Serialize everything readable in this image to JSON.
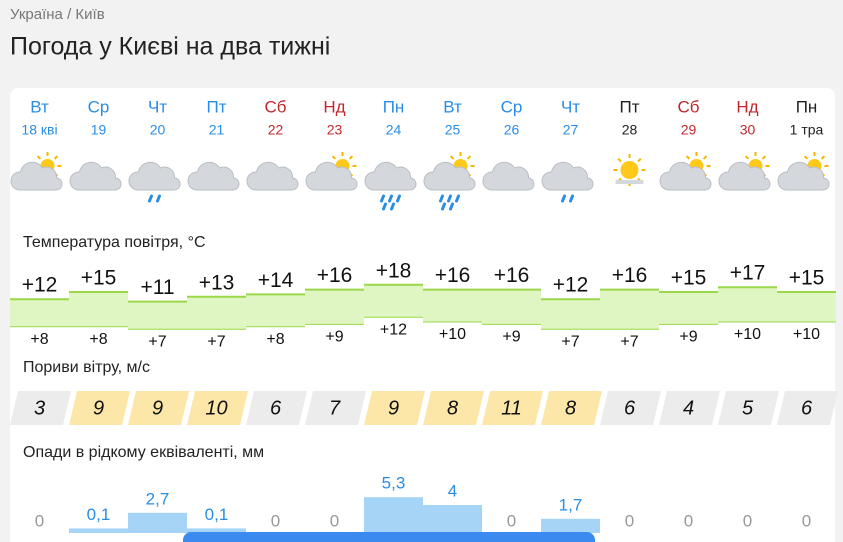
{
  "breadcrumb": [
    "Україна",
    "Київ"
  ],
  "title": "Погода у Києві на два тижні",
  "sections": {
    "temperature": "Температура повітря, °C",
    "wind": "Пориви вітру, м/с",
    "precip": "Опади в рідкому еквіваленті, мм"
  },
  "days": [
    {
      "dow": "Вт",
      "date": "18 кві",
      "color": "#2a8de4",
      "icon": "sun-cloud",
      "tmax": {
        "value": 12,
        "label": "+12"
      },
      "tmin": {
        "value": 8,
        "label": "+8"
      },
      "wind": 3,
      "precip": 0
    },
    {
      "dow": "Ср",
      "date": "19",
      "color": "#2a8de4",
      "icon": "cloud",
      "tmax": {
        "value": 15,
        "label": "+15"
      },
      "tmin": {
        "value": 8,
        "label": "+8"
      },
      "wind": 9,
      "precip": {
        "value": 0.1,
        "label": "0,1"
      }
    },
    {
      "dow": "Чт",
      "date": "20",
      "color": "#2a8de4",
      "icon": "cloud-rain",
      "tmax": {
        "value": 11,
        "label": "+11"
      },
      "tmin": {
        "value": 7,
        "label": "+7"
      },
      "wind": 9,
      "precip": {
        "value": 2.7,
        "label": "2,7"
      }
    },
    {
      "dow": "Пт",
      "date": "21",
      "color": "#2a8de4",
      "icon": "cloud",
      "tmax": {
        "value": 13,
        "label": "+13"
      },
      "tmin": {
        "value": 7,
        "label": "+7"
      },
      "wind": 10,
      "precip": {
        "value": 0.1,
        "label": "0,1"
      }
    },
    {
      "dow": "Сб",
      "date": "22",
      "color": "#c0282d",
      "icon": "cloud",
      "tmax": {
        "value": 14,
        "label": "+14"
      },
      "tmin": {
        "value": 8,
        "label": "+8"
      },
      "wind": 6,
      "precip": 0
    },
    {
      "dow": "Нд",
      "date": "23",
      "color": "#c0282d",
      "icon": "sun-cloud",
      "tmax": {
        "value": 16,
        "label": "+16"
      },
      "tmin": {
        "value": 9,
        "label": "+9"
      },
      "wind": 7,
      "precip": 0
    },
    {
      "dow": "Пн",
      "date": "24",
      "color": "#2a8de4",
      "icon": "cloud-rain",
      "tmax": {
        "value": 18,
        "label": "+18"
      },
      "tmin": {
        "value": 12,
        "label": "+12"
      },
      "wind": 9,
      "precip": {
        "value": 5.3,
        "label": "5,3"
      }
    },
    {
      "dow": "Вт",
      "date": "25",
      "color": "#2a8de4",
      "icon": "sun-cloud-rain",
      "tmax": {
        "value": 16,
        "label": "+16"
      },
      "tmin": {
        "value": 10,
        "label": "+10"
      },
      "wind": 8,
      "precip": 4
    },
    {
      "dow": "Ср",
      "date": "26",
      "color": "#2a8de4",
      "icon": "cloud",
      "tmax": {
        "value": 16,
        "label": "+16"
      },
      "tmin": {
        "value": 9,
        "label": "+9"
      },
      "wind": 11,
      "precip": 0
    },
    {
      "dow": "Чт",
      "date": "27",
      "color": "#2a8de4",
      "icon": "cloud-rain",
      "tmax": {
        "value": 12,
        "label": "+12"
      },
      "tmin": {
        "value": 7,
        "label": "+7"
      },
      "wind": 8,
      "precip": {
        "value": 1.7,
        "label": "1,7"
      }
    },
    {
      "dow": "Пт",
      "date": "28",
      "color": "#222222",
      "icon": "sun",
      "tmax": {
        "value": 16,
        "label": "+16"
      },
      "tmin": {
        "value": 7,
        "label": "+7"
      },
      "wind": 6,
      "precip": 0
    },
    {
      "dow": "Сб",
      "date": "29",
      "color": "#c0282d",
      "icon": "sun-cloud",
      "tmax": {
        "value": 15,
        "label": "+15"
      },
      "tmin": {
        "value": 9,
        "label": "+9"
      },
      "wind": 4,
      "precip": 0
    },
    {
      "dow": "Нд",
      "date": "30",
      "color": "#c0282d",
      "icon": "sun-cloud",
      "tmax": {
        "value": 17,
        "label": "+17"
      },
      "tmin": {
        "value": 10,
        "label": "+10"
      },
      "wind": 5,
      "precip": 0
    },
    {
      "dow": "Пн",
      "date": "1 тра",
      "color": "#222222",
      "icon": "sun-cloud",
      "tmax": {
        "value": 15,
        "label": "+15"
      },
      "tmin": {
        "value": 10,
        "label": "+10"
      },
      "wind": 6,
      "precip": 0
    }
  ]
}
